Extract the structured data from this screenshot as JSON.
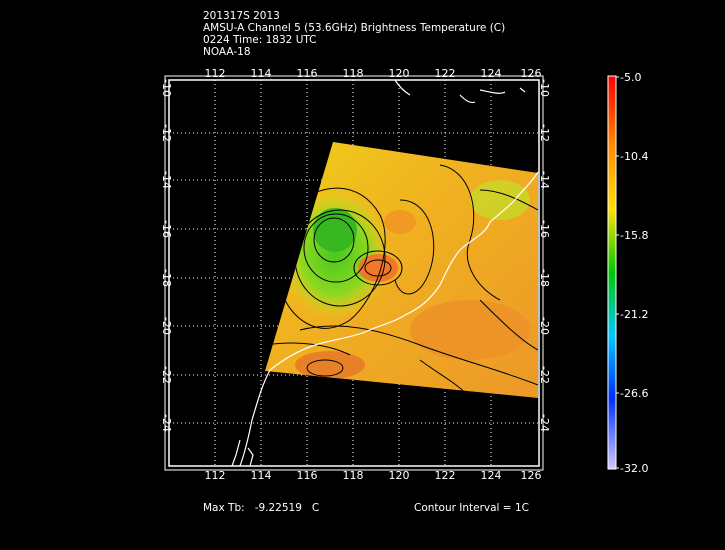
{
  "header": {
    "line1": "201317S 2013",
    "line2": "AMSU-A Channel 5 (53.6GHz) Brightness Temperature (C)",
    "line3": "0224 Time: 1832 UTC",
    "line4": "NOAA-18"
  },
  "axes": {
    "lon_ticks": [
      "112",
      "114",
      "116",
      "118",
      "120",
      "122",
      "124",
      "126"
    ],
    "lat_ticks": [
      "-10",
      "-12",
      "-14",
      "-16",
      "-18",
      "-20",
      "-22",
      "-24"
    ]
  },
  "colorbar": {
    "labels": [
      "-5.0",
      "-10.4",
      "-15.8",
      "-21.2",
      "-26.6",
      "-32.0"
    ]
  },
  "footer": {
    "max_label": "Max Tb:",
    "max_value": "-9.22519",
    "max_unit": "C",
    "contour": "Contour Interval = 1C"
  },
  "colors": {
    "background": "#000000",
    "frame": "#ffffff"
  }
}
